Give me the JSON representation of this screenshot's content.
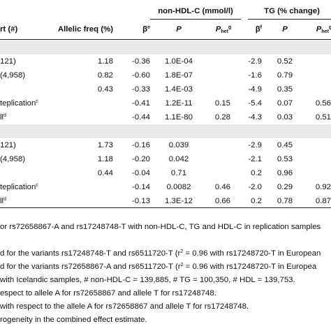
{
  "header": {
    "group_nonhdl": "non-HDL-C (mmol/l)",
    "group_tg": "TG (% change)",
    "col_cohort": "rt (#)",
    "col_allelic": "Allelic freq (%)",
    "beta": "β",
    "beta_sup_e": "e",
    "beta_sup_f": "f",
    "p": "P",
    "phet": "P",
    "phet_sub": "het",
    "phet_sup": "g"
  },
  "rows": [
    {
      "cohort": "",
      "allelic": "",
      "b1": "",
      "p1": "",
      "ph1": "",
      "b2": "",
      "p2": "",
      "ph2": ""
    },
    {
      "cohort": "121)",
      "allelic": "1.18",
      "b1": "-0.36",
      "p1": "1.0E-04",
      "ph1": "",
      "b2": "-2.9",
      "p2": "0.52",
      "ph2": ""
    },
    {
      "cohort": "(4,958)",
      "allelic": "0.82",
      "b1": "-0.60",
      "p1": "1.8E-07",
      "ph1": "",
      "b2": "-1.6",
      "p2": "0.79",
      "ph2": ""
    },
    {
      "cohort": "",
      "allelic": "0.43",
      "b1": "-0.33",
      "p1": "1.4E-03",
      "ph1": "",
      "b2": "-4.9",
      "p2": "0.35",
      "ph2": ""
    },
    {
      "cohort": "teplication",
      "cohort_sup": "c",
      "allelic": "",
      "b1": "-0.41",
      "p1": "1.2E-11",
      "ph1": "0.15",
      "b2": "-5.4",
      "p2": "0.07",
      "ph2": "0.56"
    },
    {
      "cohort": "ll",
      "cohort_sup": "d",
      "allelic": "",
      "b1": "-0.44",
      "p1": "1.1E-80",
      "ph1": "0.28",
      "b2": "-4.3",
      "p2": "0.03",
      "ph2": "0.51"
    },
    {
      "cohort": "",
      "allelic": "",
      "b1": "",
      "p1": "",
      "ph1": "",
      "b2": "",
      "p2": "",
      "ph2": ""
    },
    {
      "cohort": "121)",
      "allelic": "1.73",
      "b1": "-0.16",
      "p1": "0.039",
      "ph1": "",
      "b2": "-2.9",
      "p2": "0.45",
      "ph2": ""
    },
    {
      "cohort": "(4,958)",
      "allelic": "1.18",
      "b1": "-0.20",
      "p1": "0.042",
      "ph1": "",
      "b2": "-2.1",
      "p2": "0.53",
      "ph2": ""
    },
    {
      "cohort": "",
      "allelic": "0.44",
      "b1": "-0.04",
      "p1": "0.71",
      "ph1": "",
      "b2": "0.2",
      "p2": "0.96",
      "ph2": ""
    },
    {
      "cohort": "teplication",
      "cohort_sup": "c",
      "allelic": "",
      "b1": "-0.14",
      "p1": "0.0082",
      "ph1": "0.46",
      "b2": "-2.0",
      "p2": "0.29",
      "ph2": "0.92"
    },
    {
      "cohort": "ll",
      "cohort_sup": "d",
      "allelic": "",
      "b1": "-0.13",
      "p1": "1.3E-12",
      "ph1": "0.66",
      "b2": "0.2",
      "p2": "0.78",
      "ph2": "0.87"
    }
  ],
  "footnotes": [
    "or rs72658867-A and rs17248748-T with non-HDL-C, TG and HDL-C in replication samples",
    "d for the variants rs17248748-T and rs6511720-T (r",
    "d for the variants rs72658867-A and rs6511720-T (r",
    "with Icelandic samples, # non-HDL-C = 139,885, # TG = 100,350, # HDL = 139,753.",
    "espect to allele A for rs72658867 and allele T for rs17248748.",
    "with respect to the allele A for rs72658867 and allele T for rs17248748.",
    "rogeneity in the combined effect estimate."
  ],
  "footnote_r2": {
    "sup": "2",
    "tail1": " = 0.96 with rs17248720-T in European",
    "tail2": " = 0.96 with rs17248720-T in Europea"
  }
}
